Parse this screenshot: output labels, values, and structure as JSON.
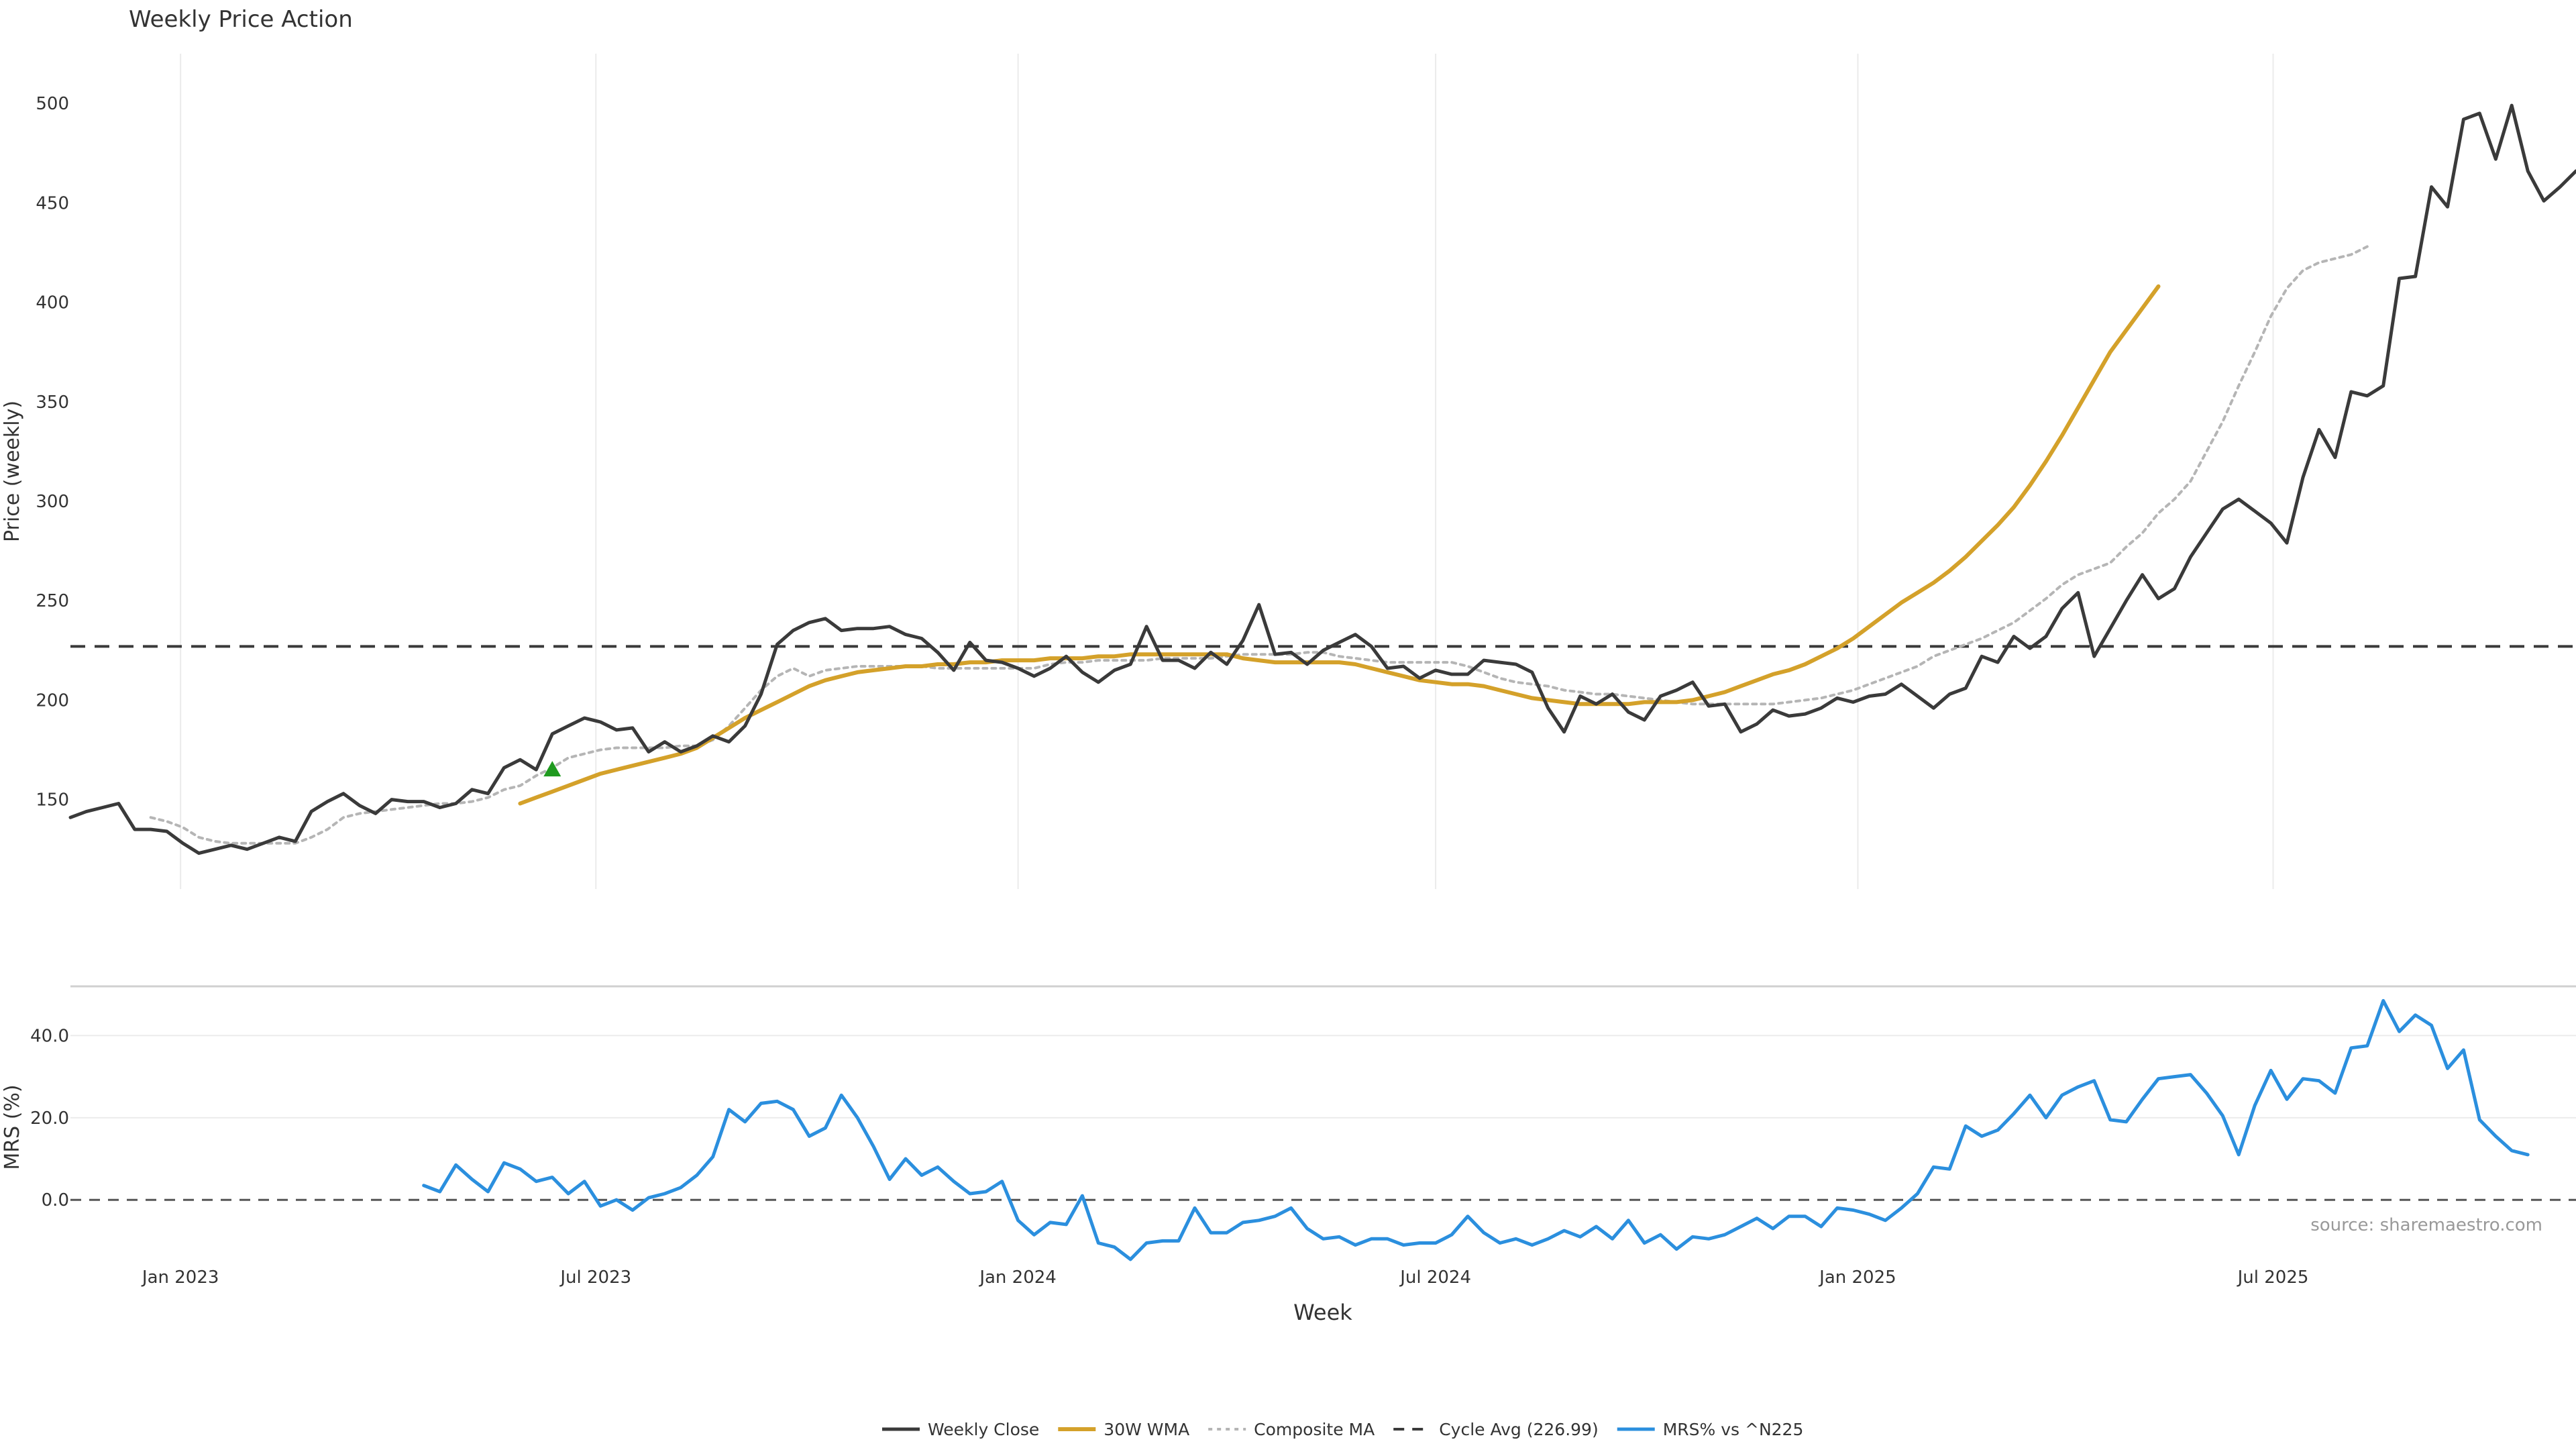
{
  "title": "Weekly Price Action",
  "source_note": "source: sharemaestro.com",
  "colors": {
    "weekly_close": "#3a3a3a",
    "wma": "#d4a12a",
    "composite": "#b5b5b5",
    "cycle_avg": "#3a3a3a",
    "mrs": "#2b8fde",
    "marker": "#1f9a1f",
    "grid": "#ebebeb",
    "axis_text": "#333333"
  },
  "chart_data": [
    {
      "type": "line",
      "title": "Weekly Price Action",
      "xlabel": "",
      "ylabel": "Price (weekly)",
      "ylim": [
        105,
        525
      ],
      "yticks": [
        150,
        200,
        250,
        300,
        350,
        400,
        450,
        500
      ],
      "x_start": "2022-11-14",
      "x_end": "2025-11-10",
      "xticks": [
        {
          "date": "2023-01-01",
          "label": "Jan 2023"
        },
        {
          "date": "2023-07-01",
          "label": "Jul 2023"
        },
        {
          "date": "2024-01-01",
          "label": "Jan 2024"
        },
        {
          "date": "2024-07-01",
          "label": "Jul 2024"
        },
        {
          "date": "2025-01-01",
          "label": "Jan 2025"
        },
        {
          "date": "2025-07-01",
          "label": "Jul 2025"
        }
      ],
      "grid": "vertical",
      "series": [
        {
          "name": "Weekly Close",
          "key": "weekly_close",
          "start": "2022-11-14",
          "values": [
            141,
            144,
            146,
            148,
            135,
            135,
            134,
            128,
            123,
            125,
            127,
            125,
            128,
            131,
            129,
            144,
            149,
            153,
            147,
            143,
            150,
            149,
            149,
            146,
            148,
            155,
            153,
            166,
            170,
            165,
            183,
            187,
            191,
            189,
            185,
            186,
            174,
            179,
            174,
            177,
            182,
            179,
            187,
            203,
            228,
            235,
            239,
            241,
            235,
            236,
            236,
            237,
            233,
            231,
            224,
            215,
            229,
            220,
            219,
            216,
            212,
            216,
            222,
            214,
            209,
            215,
            218,
            237,
            220,
            220,
            216,
            224,
            218,
            230,
            248,
            223,
            224,
            218,
            225,
            229,
            233,
            227,
            216,
            217,
            211,
            215,
            213,
            213,
            220,
            219,
            218,
            214,
            196,
            184,
            202,
            198,
            203,
            194,
            190,
            202,
            205,
            209,
            197,
            198,
            184,
            188,
            195,
            192,
            193,
            196,
            201,
            199,
            202,
            203,
            208,
            202,
            196,
            203,
            206,
            222,
            219,
            232,
            226,
            232,
            246,
            254,
            222,
            236,
            250,
            263,
            251,
            256,
            272,
            284,
            296,
            301,
            295,
            289,
            279,
            312,
            336,
            322,
            355,
            353,
            358,
            412,
            413,
            458,
            448,
            492,
            495,
            472,
            499,
            466,
            451,
            458,
            466
          ]
        },
        {
          "name": "30W WMA",
          "key": "wma",
          "start": "2023-05-29",
          "values": [
            148,
            151,
            154,
            157,
            160,
            163,
            165,
            167,
            169,
            171,
            173,
            176,
            181,
            186,
            191,
            195,
            199,
            203,
            207,
            210,
            212,
            214,
            215,
            216,
            217,
            217,
            218,
            218,
            219,
            219,
            220,
            220,
            220,
            221,
            221,
            221,
            222,
            222,
            223,
            223,
            223,
            223,
            223,
            223,
            223,
            221,
            220,
            219,
            219,
            219,
            219,
            219,
            218,
            216,
            214,
            212,
            210,
            209,
            208,
            208,
            207,
            205,
            203,
            201,
            200,
            199,
            198,
            198,
            198,
            198,
            199,
            199,
            199,
            200,
            202,
            204,
            207,
            210,
            213,
            215,
            218,
            222,
            226,
            231,
            237,
            243,
            249,
            254,
            259,
            265,
            272,
            280,
            288,
            297,
            308,
            320,
            333,
            347,
            361,
            375,
            386,
            397,
            408
          ]
        },
        {
          "name": "Composite MA",
          "key": "composite",
          "start": "2022-12-19",
          "values": [
            141,
            139,
            136,
            131,
            129,
            128,
            128,
            128,
            128,
            128,
            131,
            135,
            141,
            143,
            144,
            145,
            146,
            147,
            148,
            148,
            149,
            151,
            155,
            157,
            162,
            166,
            171,
            173,
            175,
            176,
            176,
            176,
            176,
            177,
            177,
            180,
            187,
            196,
            205,
            212,
            216,
            212,
            215,
            216,
            217,
            217,
            217,
            217,
            217,
            216,
            216,
            216,
            216,
            216,
            216,
            216,
            218,
            219,
            219,
            220,
            220,
            220,
            220,
            221,
            221,
            221,
            221,
            222,
            223,
            223,
            223,
            223,
            224,
            224,
            222,
            221,
            220,
            219,
            219,
            219,
            219,
            219,
            217,
            214,
            211,
            209,
            208,
            207,
            205,
            204,
            203,
            203,
            202,
            201,
            200,
            199,
            198,
            198,
            198,
            198,
            198,
            198,
            199,
            200,
            201,
            203,
            205,
            208,
            211,
            214,
            217,
            222,
            225,
            228,
            231,
            235,
            239,
            245,
            251,
            258,
            263,
            266,
            269,
            277,
            284,
            294,
            301,
            310,
            325,
            340,
            358,
            375,
            393,
            407,
            416,
            420,
            422,
            424,
            428
          ]
        },
        {
          "name": "Cycle Avg (226.99)",
          "key": "cycle_avg",
          "constant": 226.99
        }
      ],
      "annotations": [
        {
          "type": "marker",
          "shape": "triangle-up",
          "date": "2023-06-12",
          "value": 165
        }
      ]
    },
    {
      "type": "line",
      "xlabel": "Week",
      "ylabel": "MRS (%)",
      "ylim": [
        -15,
        52
      ],
      "yticks": [
        0.0,
        20.0,
        40.0
      ],
      "ytick_labels": [
        "0.0",
        "20.0",
        "40.0"
      ],
      "series": [
        {
          "name": "MRS% vs ^N225",
          "key": "mrs",
          "start": "2023-04-17",
          "values": [
            3.5,
            2.0,
            8.5,
            5.0,
            2.0,
            9.0,
            7.5,
            4.5,
            5.5,
            1.5,
            4.5,
            -1.5,
            0.0,
            -2.5,
            0.5,
            1.5,
            3.0,
            6.0,
            10.5,
            22.0,
            19.0,
            23.5,
            24.0,
            22.0,
            15.5,
            17.5,
            25.5,
            20.0,
            13.0,
            5.0,
            10.0,
            6.0,
            8.0,
            4.5,
            1.5,
            2.0,
            4.5,
            -5.0,
            -8.5,
            -5.5,
            -6.0,
            1.0,
            -10.5,
            -11.5,
            -14.5,
            -10.5,
            -10.0,
            -10.0,
            -2.0,
            -8.0,
            -8.0,
            -5.5,
            -5.0,
            -4.0,
            -2.0,
            -7.0,
            -9.5,
            -9.0,
            -11.0,
            -9.5,
            -9.5,
            -11.0,
            -10.5,
            -10.5,
            -8.5,
            -4.0,
            -8.0,
            -10.5,
            -9.5,
            -11.0,
            -9.5,
            -7.5,
            -9.0,
            -6.5,
            -9.5,
            -5.0,
            -10.5,
            -8.5,
            -12.0,
            -9.0,
            -9.5,
            -8.5,
            -6.5,
            -4.5,
            -7.0,
            -4.0,
            -4.0,
            -6.5,
            -2.0,
            -2.5,
            -3.5,
            -5.0,
            -2.0,
            1.5,
            8.0,
            7.5,
            18.0,
            15.5,
            17.0,
            21.0,
            25.5,
            20.0,
            25.5,
            27.5,
            29.0,
            19.5,
            19.0,
            24.5,
            29.5,
            30.0,
            30.5,
            26.0,
            20.5,
            11.0,
            23.0,
            31.5,
            24.5,
            29.5,
            29.0,
            26.0,
            37.0,
            37.5,
            48.5,
            41.0,
            45.0,
            42.5,
            32.0,
            36.5,
            19.5,
            15.5,
            12.0,
            11.0
          ]
        },
        {
          "name": "",
          "key": "zero_line",
          "constant": 0
        }
      ]
    }
  ],
  "legend": {
    "placement": "bottom-center",
    "entries": [
      {
        "label": "Weekly Close",
        "key": "weekly_close",
        "style": "solid"
      },
      {
        "label": "30W WMA",
        "key": "wma",
        "style": "solid"
      },
      {
        "label": "Composite MA",
        "key": "composite",
        "style": "dotted"
      },
      {
        "label": "Cycle Avg (226.99)",
        "key": "cycle_avg",
        "style": "dashed"
      },
      {
        "label": "MRS% vs ^N225",
        "key": "mrs",
        "style": "solid"
      }
    ]
  }
}
